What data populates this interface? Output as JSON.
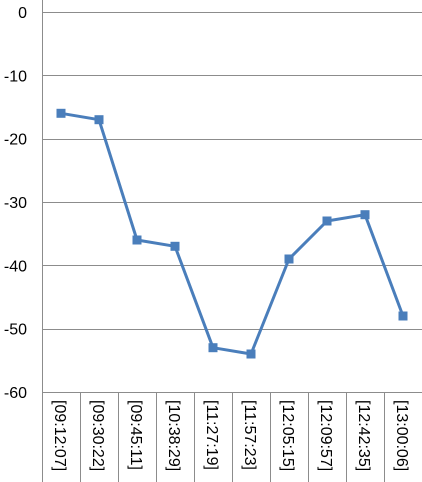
{
  "chart_data": {
    "type": "line",
    "title": "",
    "xlabel": "",
    "ylabel": "",
    "categories": [
      "[09:12:07]",
      "[09:30:22]",
      "[09:45:11]",
      "[10:38:29]",
      "[11:27:19]",
      "[11:57:23]",
      "[12:05:15]",
      "[12:09:57]",
      "[12:42:35]",
      "[13:00:06]"
    ],
    "series": [
      {
        "values": [
          -16,
          -17,
          -36,
          -37,
          -53,
          -54,
          -39,
          -33,
          -32,
          -48
        ]
      }
    ],
    "ylim": [
      -60,
      0
    ],
    "yticks": [
      0,
      -10,
      -20,
      -30,
      -40,
      -50,
      -60
    ],
    "ytick_labels": [
      "0",
      "-10",
      "-20",
      "-30",
      "-40",
      "-50",
      "-60"
    ],
    "grid": true,
    "legend": "none",
    "colors": {
      "series": "#4a7ebb",
      "grid": "#8c8c8c",
      "text": "#000000",
      "background": "#ffffff"
    }
  }
}
